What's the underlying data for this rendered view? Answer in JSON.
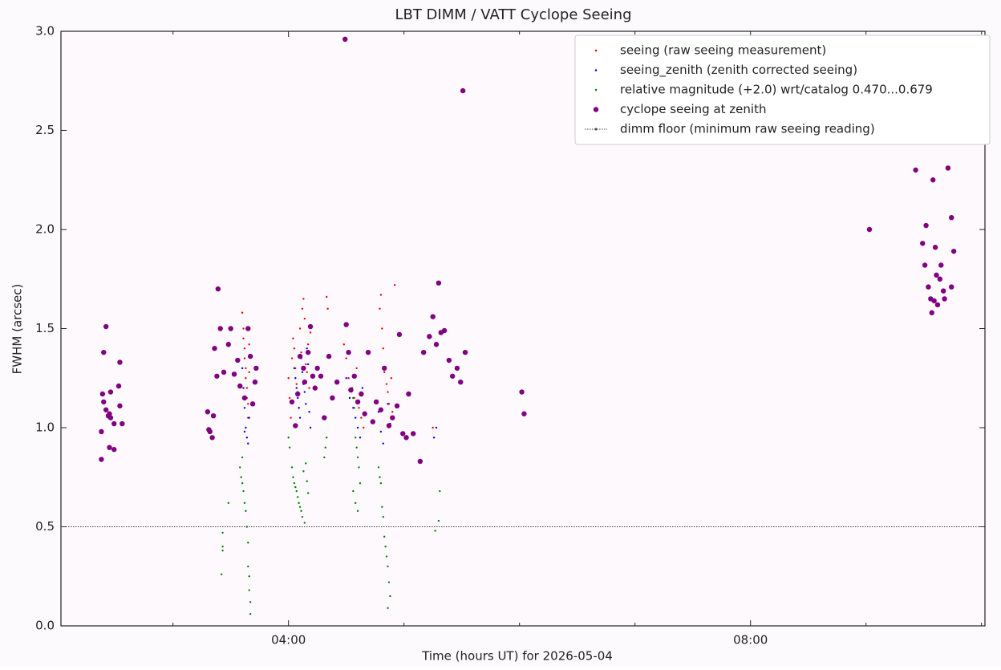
{
  "chart_data": {
    "type": "scatter",
    "title": "LBT DIMM / VATT Cyclope Seeing",
    "xlabel": "Time (hours UT) for 2026-05-04",
    "ylabel": "FWHM (arcsec)",
    "xlim": [
      2.03,
      10.03
    ],
    "ylim": [
      0,
      3
    ],
    "xticks": [
      {
        "value": 4,
        "label": "04:00"
      },
      {
        "value": 8,
        "label": "08:00"
      }
    ],
    "xminor": [
      3,
      5,
      6,
      7,
      9,
      10
    ],
    "yticks": [
      {
        "value": 0,
        "label": "0.0"
      },
      0.5,
      {
        "value": 1,
        "label": "1.0"
      },
      1.5,
      {
        "value": 2,
        "label": "2.0"
      },
      2.5,
      {
        "value": 3,
        "label": "3.0"
      }
    ],
    "grid": false,
    "legend": "upper right",
    "series": [
      {
        "name": "seeing (raw seeing measurement)",
        "color": "#ff0000",
        "marker": ".",
        "x": [
          3.6,
          3.61,
          3.61,
          3.62,
          3.62,
          3.63,
          3.63,
          3.64,
          3.64,
          3.65,
          3.65,
          3.66,
          3.66,
          4.0,
          4.01,
          4.02,
          4.03,
          4.04,
          4.05,
          4.06,
          4.07,
          4.08,
          4.09,
          4.1,
          4.11,
          4.12,
          4.13,
          4.14,
          4.15,
          4.16,
          4.17,
          4.18,
          4.19,
          4.33,
          4.34,
          4.48,
          4.5,
          4.52,
          4.55,
          4.57,
          4.59,
          4.61,
          4.63,
          4.65,
          4.79,
          4.8,
          4.81,
          4.82,
          4.83,
          4.85,
          4.86,
          4.87,
          4.92,
          4.89,
          4.9,
          5.25
        ],
        "values": [
          1.58,
          1.5,
          1.45,
          1.4,
          1.35,
          1.3,
          1.25,
          1.2,
          1.15,
          1.12,
          1.05,
          1.42,
          1.28,
          1.25,
          1.15,
          1.05,
          1.35,
          1.45,
          1.4,
          1.3,
          1.22,
          1.18,
          1.1,
          1.5,
          1.38,
          1.6,
          1.65,
          1.55,
          1.32,
          1.28,
          1.42,
          1.2,
          1.48,
          1.66,
          1.6,
          1.42,
          1.35,
          1.25,
          1.2,
          1.15,
          1.3,
          1.1,
          1.05,
          1.0,
          1.6,
          1.67,
          1.5,
          1.4,
          1.28,
          1.22,
          1.18,
          1.12,
          1.72,
          1.25,
          1.08,
          1.0
        ]
      },
      {
        "name": "seeing_zenith (zenith corrected seeing)",
        "color": "#0000ff",
        "marker": ".",
        "x": [
          3.6,
          3.61,
          3.62,
          3.63,
          3.64,
          3.65,
          3.66,
          3.62,
          4.05,
          4.06,
          4.07,
          4.08,
          4.09,
          4.1,
          4.11,
          4.12,
          4.13,
          4.14,
          4.15,
          4.16,
          4.17,
          4.18,
          4.19,
          4.5,
          4.53,
          4.56,
          4.58,
          4.6,
          4.62,
          4.64,
          4.78,
          4.8,
          4.82,
          4.84,
          4.86,
          4.88,
          5.26,
          5.28
        ],
        "values": [
          1.3,
          1.2,
          1.1,
          1.0,
          0.95,
          0.92,
          1.05,
          0.98,
          1.3,
          1.25,
          1.2,
          1.15,
          1.1,
          1.05,
          1.35,
          1.28,
          1.22,
          1.18,
          1.12,
          1.4,
          1.32,
          1.08,
          1.0,
          1.25,
          1.15,
          1.1,
          1.05,
          1.0,
          0.95,
          1.2,
          1.08,
          0.98,
          0.92,
          1.3,
          1.12,
          1.02,
          0.95,
          1.0
        ]
      },
      {
        "name": "relative magnitude (+2.0) wrt/catalog 0.470...0.679",
        "color": "#008000",
        "marker": ".",
        "x": [
          3.42,
          3.43,
          3.43,
          3.43,
          3.48,
          3.58,
          3.59,
          3.6,
          3.61,
          3.62,
          3.63,
          3.64,
          3.65,
          3.65,
          3.66,
          3.66,
          3.67,
          3.67,
          3.6,
          4.0,
          4.01,
          4.03,
          4.04,
          4.05,
          4.06,
          4.07,
          4.08,
          4.09,
          4.1,
          4.11,
          4.12,
          4.14,
          4.13,
          4.15,
          4.16,
          4.17,
          4.32,
          4.33,
          4.31,
          4.55,
          4.56,
          4.57,
          4.58,
          4.59,
          4.6,
          4.61,
          4.62,
          4.56,
          4.58,
          4.6,
          4.78,
          4.79,
          4.8,
          4.81,
          4.82,
          4.83,
          4.84,
          4.85,
          4.86,
          4.87,
          4.88,
          4.86,
          5.27,
          5.3,
          5.31
        ],
        "values": [
          0.26,
          0.47,
          0.4,
          0.38,
          0.62,
          0.8,
          0.75,
          0.72,
          0.68,
          0.62,
          0.58,
          0.5,
          0.42,
          0.3,
          0.25,
          0.18,
          0.12,
          0.06,
          0.85,
          0.95,
          0.9,
          0.8,
          0.75,
          0.72,
          0.7,
          0.68,
          0.65,
          0.62,
          0.6,
          0.58,
          0.55,
          0.52,
          0.78,
          0.82,
          0.73,
          0.67,
          0.9,
          0.95,
          0.85,
          1.2,
          1.15,
          1.1,
          0.95,
          0.9,
          0.85,
          0.8,
          0.72,
          0.68,
          0.62,
          0.58,
          0.8,
          0.75,
          0.72,
          0.6,
          0.55,
          0.45,
          0.4,
          0.35,
          0.3,
          0.22,
          0.15,
          0.09,
          0.48,
          0.53,
          0.68
        ]
      },
      {
        "name": "cyclope seeing at zenith",
        "color": "#800080",
        "marker": "o",
        "x": [
          2.38,
          2.38,
          2.39,
          2.4,
          2.4,
          2.42,
          2.42,
          2.44,
          2.45,
          2.46,
          2.46,
          2.45,
          2.49,
          2.49,
          2.53,
          2.54,
          2.56,
          2.54,
          3.3,
          3.31,
          3.32,
          3.34,
          3.35,
          3.36,
          3.38,
          3.39,
          3.41,
          3.44,
          3.48,
          3.5,
          3.53,
          3.56,
          3.58,
          3.62,
          3.65,
          3.67,
          3.69,
          3.71,
          3.72,
          4.03,
          4.06,
          4.08,
          4.1,
          4.13,
          4.14,
          4.17,
          4.19,
          4.21,
          4.23,
          4.25,
          4.28,
          4.31,
          4.35,
          4.38,
          4.42,
          4.49,
          4.5,
          4.52,
          4.54,
          4.57,
          4.6,
          4.63,
          4.66,
          4.69,
          4.73,
          4.76,
          4.8,
          4.83,
          4.87,
          4.9,
          4.94,
          4.96,
          4.99,
          5.02,
          5.04,
          5.08,
          5.14,
          5.17,
          5.22,
          5.25,
          5.28,
          5.3,
          5.32,
          5.35,
          5.39,
          5.42,
          5.46,
          5.49,
          5.53,
          5.51,
          6.02,
          6.04,
          9.03,
          9.43,
          9.49,
          9.52,
          9.54,
          9.56,
          9.57,
          9.58,
          9.6,
          9.61,
          9.62,
          9.64,
          9.65,
          9.67,
          9.68,
          9.71,
          9.74,
          9.74,
          9.76,
          9.51,
          9.59
        ],
        "values": [
          0.84,
          0.98,
          1.17,
          1.13,
          1.38,
          1.51,
          1.09,
          1.06,
          1.07,
          1.05,
          1.18,
          0.9,
          0.89,
          1.02,
          1.21,
          1.33,
          1.02,
          1.11,
          1.08,
          0.99,
          0.98,
          0.95,
          1.06,
          1.4,
          1.26,
          1.7,
          1.5,
          1.28,
          1.42,
          1.5,
          1.27,
          1.34,
          1.21,
          1.15,
          1.5,
          1.36,
          1.12,
          1.23,
          1.3,
          1.13,
          1.01,
          1.17,
          1.36,
          1.3,
          1.23,
          1.38,
          1.51,
          1.26,
          1.2,
          1.3,
          1.26,
          1.05,
          1.36,
          1.15,
          1.23,
          2.96,
          1.52,
          1.38,
          1.19,
          1.26,
          1.13,
          1.17,
          1.07,
          1.38,
          1.03,
          1.13,
          1.09,
          1.3,
          1.01,
          1.05,
          1.11,
          1.47,
          0.97,
          0.95,
          1.17,
          0.97,
          0.83,
          1.38,
          1.46,
          1.56,
          1.42,
          1.73,
          1.48,
          1.49,
          1.34,
          1.26,
          1.3,
          1.23,
          1.38,
          2.7,
          1.18,
          1.07,
          2.0,
          2.3,
          1.93,
          2.02,
          1.71,
          1.65,
          1.58,
          2.25,
          1.91,
          1.77,
          1.62,
          1.75,
          1.82,
          1.69,
          1.65,
          2.31,
          2.06,
          1.71,
          1.89,
          1.82,
          1.64
        ]
      },
      {
        "name": "dimm floor (minimum raw seeing reading)",
        "color": "#444444",
        "marker": ":",
        "x": [
          2.03,
          10.03
        ],
        "values": [
          0.5,
          0.5
        ]
      }
    ]
  }
}
